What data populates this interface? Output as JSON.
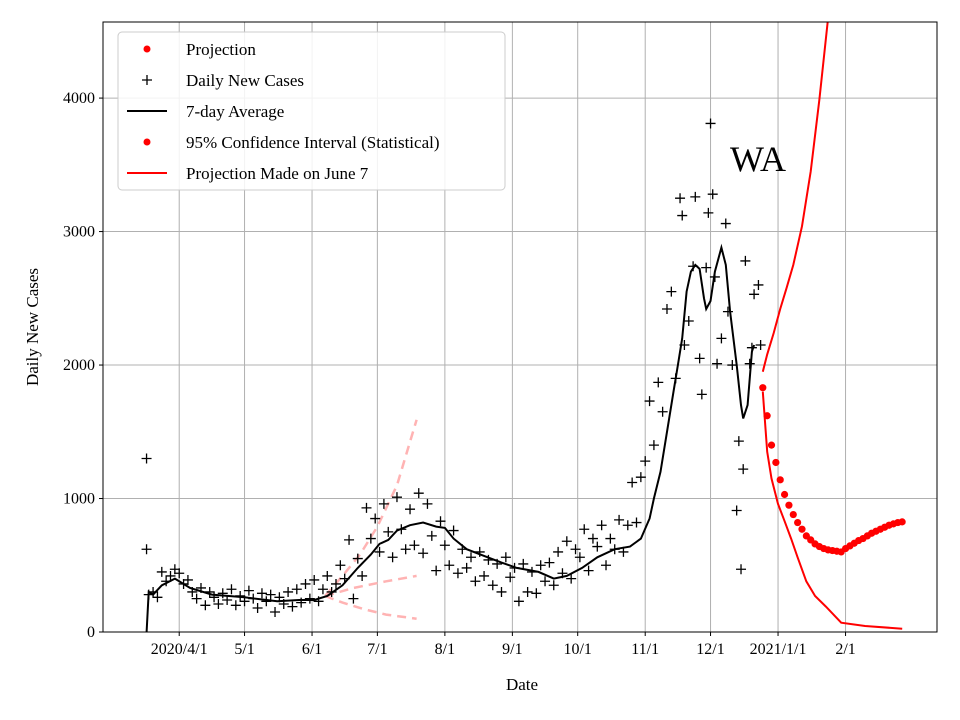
{
  "chart_data": {
    "type": "line",
    "title": "WA",
    "xlabel": "Date",
    "ylabel": "Daily New Cases",
    "x_unit": "days since 2020/4/1",
    "xlim": [
      -35,
      348
    ],
    "ylim": [
      0,
      4570
    ],
    "grid": true,
    "legend_placement": "top-left",
    "x_ticks": [
      {
        "label": "2020/4/1",
        "value": 0
      },
      {
        "label": "5/1",
        "value": 30
      },
      {
        "label": "6/1",
        "value": 61
      },
      {
        "label": "7/1",
        "value": 91
      },
      {
        "label": "8/1",
        "value": 122
      },
      {
        "label": "9/1",
        "value": 153
      },
      {
        "label": "10/1",
        "value": 183
      },
      {
        "label": "11/1",
        "value": 214
      },
      {
        "label": "12/1",
        "value": 244
      },
      {
        "label": "2021/1/1",
        "value": 275
      },
      {
        "label": "2/1",
        "value": 306
      }
    ],
    "y_ticks": [
      {
        "label": "0",
        "value": 0
      },
      {
        "label": "1000",
        "value": 1000
      },
      {
        "label": "2000",
        "value": 2000
      },
      {
        "label": "3000",
        "value": 3000
      },
      {
        "label": "4000",
        "value": 4000
      }
    ],
    "legend": [
      {
        "label": "Projection",
        "marker": "dot",
        "color": "#ff0000"
      },
      {
        "label": "Daily New Cases",
        "marker": "plus",
        "color": "#000000"
      },
      {
        "label": "7-day Average",
        "marker": "line",
        "color": "#000000"
      },
      {
        "label": "95% Confidence Interval (Statistical)",
        "marker": "dot",
        "color": "#ff0000"
      },
      {
        "label": "Projection Made on June 7",
        "marker": "line",
        "color": "#ff0000"
      }
    ],
    "series": {
      "daily_new_cases": [
        [
          -15,
          1300
        ],
        [
          -15,
          620
        ],
        [
          -14,
          280
        ],
        [
          -12,
          300
        ],
        [
          -10,
          260
        ],
        [
          -8,
          450
        ],
        [
          -6,
          380
        ],
        [
          -4,
          420
        ],
        [
          -2,
          470
        ],
        [
          0,
          440
        ],
        [
          2,
          360
        ],
        [
          4,
          390
        ],
        [
          6,
          300
        ],
        [
          8,
          250
        ],
        [
          10,
          330
        ],
        [
          12,
          200
        ],
        [
          14,
          300
        ],
        [
          16,
          260
        ],
        [
          18,
          210
        ],
        [
          20,
          290
        ],
        [
          22,
          240
        ],
        [
          24,
          320
        ],
        [
          26,
          200
        ],
        [
          28,
          270
        ],
        [
          30,
          230
        ],
        [
          32,
          310
        ],
        [
          34,
          250
        ],
        [
          36,
          180
        ],
        [
          38,
          290
        ],
        [
          40,
          230
        ],
        [
          42,
          280
        ],
        [
          44,
          150
        ],
        [
          46,
          260
        ],
        [
          48,
          210
        ],
        [
          50,
          300
        ],
        [
          52,
          190
        ],
        [
          54,
          320
        ],
        [
          56,
          220
        ],
        [
          58,
          360
        ],
        [
          60,
          250
        ],
        [
          62,
          390
        ],
        [
          64,
          230
        ],
        [
          66,
          320
        ],
        [
          68,
          420
        ],
        [
          70,
          300
        ],
        [
          72,
          360
        ],
        [
          74,
          500
        ],
        [
          76,
          400
        ],
        [
          78,
          690
        ],
        [
          80,
          250
        ],
        [
          82,
          550
        ],
        [
          84,
          420
        ],
        [
          86,
          930
        ],
        [
          88,
          700
        ],
        [
          90,
          850
        ],
        [
          92,
          600
        ],
        [
          94,
          960
        ],
        [
          96,
          750
        ],
        [
          98,
          560
        ],
        [
          100,
          1010
        ],
        [
          102,
          770
        ],
        [
          104,
          620
        ],
        [
          106,
          920
        ],
        [
          108,
          650
        ],
        [
          110,
          1040
        ],
        [
          112,
          590
        ],
        [
          114,
          960
        ],
        [
          116,
          720
        ],
        [
          118,
          460
        ],
        [
          120,
          830
        ],
        [
          122,
          650
        ],
        [
          124,
          500
        ],
        [
          126,
          760
        ],
        [
          128,
          440
        ],
        [
          130,
          620
        ],
        [
          132,
          480
        ],
        [
          134,
          560
        ],
        [
          136,
          380
        ],
        [
          138,
          600
        ],
        [
          140,
          420
        ],
        [
          142,
          540
        ],
        [
          144,
          350
        ],
        [
          146,
          510
        ],
        [
          148,
          300
        ],
        [
          150,
          560
        ],
        [
          152,
          410
        ],
        [
          154,
          480
        ],
        [
          156,
          230
        ],
        [
          158,
          510
        ],
        [
          160,
          300
        ],
        [
          162,
          450
        ],
        [
          164,
          290
        ],
        [
          166,
          500
        ],
        [
          168,
          380
        ],
        [
          170,
          520
        ],
        [
          172,
          350
        ],
        [
          174,
          600
        ],
        [
          176,
          440
        ],
        [
          178,
          680
        ],
        [
          180,
          400
        ],
        [
          182,
          620
        ],
        [
          184,
          560
        ],
        [
          186,
          770
        ],
        [
          188,
          460
        ],
        [
          190,
          700
        ],
        [
          192,
          640
        ],
        [
          194,
          800
        ],
        [
          196,
          500
        ],
        [
          198,
          700
        ],
        [
          200,
          620
        ],
        [
          202,
          840
        ],
        [
          204,
          600
        ],
        [
          206,
          800
        ],
        [
          208,
          1120
        ],
        [
          210,
          820
        ],
        [
          212,
          1160
        ],
        [
          214,
          1280
        ],
        [
          216,
          1730
        ],
        [
          218,
          1400
        ],
        [
          220,
          1870
        ],
        [
          222,
          1650
        ],
        [
          224,
          2420
        ],
        [
          226,
          2550
        ],
        [
          228,
          1900
        ],
        [
          230,
          3250
        ],
        [
          231,
          3120
        ],
        [
          232,
          2150
        ],
        [
          234,
          2330
        ],
        [
          236,
          2740
        ],
        [
          237,
          3260
        ],
        [
          239,
          2050
        ],
        [
          240,
          1780
        ],
        [
          242,
          2730
        ],
        [
          243,
          3140
        ],
        [
          244,
          3810
        ],
        [
          245,
          3280
        ],
        [
          246,
          2660
        ],
        [
          247,
          2010
        ],
        [
          249,
          2200
        ],
        [
          251,
          3060
        ],
        [
          252,
          2400
        ],
        [
          254,
          2000
        ],
        [
          256,
          910
        ],
        [
          257,
          1430
        ],
        [
          258,
          470
        ],
        [
          259,
          1220
        ],
        [
          260,
          2780
        ],
        [
          262,
          2010
        ],
        [
          263,
          2130
        ],
        [
          264,
          2530
        ],
        [
          266,
          2600
        ],
        [
          267,
          2150
        ]
      ],
      "seven_day_average": [
        [
          -15,
          0
        ],
        [
          -14,
          300
        ],
        [
          -12,
          280
        ],
        [
          -8,
          350
        ],
        [
          -2,
          400
        ],
        [
          5,
          330
        ],
        [
          15,
          280
        ],
        [
          30,
          260
        ],
        [
          45,
          230
        ],
        [
          55,
          240
        ],
        [
          62,
          240
        ],
        [
          68,
          270
        ],
        [
          75,
          350
        ],
        [
          82,
          480
        ],
        [
          88,
          580
        ],
        [
          92,
          660
        ],
        [
          96,
          690
        ],
        [
          100,
          760
        ],
        [
          106,
          800
        ],
        [
          112,
          820
        ],
        [
          118,
          790
        ],
        [
          122,
          780
        ],
        [
          126,
          700
        ],
        [
          132,
          620
        ],
        [
          140,
          570
        ],
        [
          148,
          520
        ],
        [
          155,
          480
        ],
        [
          165,
          450
        ],
        [
          172,
          400
        ],
        [
          178,
          420
        ],
        [
          185,
          480
        ],
        [
          192,
          560
        ],
        [
          200,
          620
        ],
        [
          207,
          640
        ],
        [
          212,
          700
        ],
        [
          216,
          850
        ],
        [
          218,
          1000
        ],
        [
          221,
          1200
        ],
        [
          224,
          1500
        ],
        [
          227,
          1800
        ],
        [
          229,
          2000
        ],
        [
          231,
          2200
        ],
        [
          233,
          2550
        ],
        [
          235,
          2700
        ],
        [
          237,
          2750
        ],
        [
          239,
          2720
        ],
        [
          241,
          2500
        ],
        [
          242,
          2420
        ],
        [
          244,
          2480
        ],
        [
          246,
          2700
        ],
        [
          249,
          2880
        ],
        [
          251,
          2750
        ],
        [
          253,
          2400
        ],
        [
          256,
          2000
        ],
        [
          258,
          1700
        ],
        [
          259,
          1600
        ],
        [
          261,
          1700
        ],
        [
          263,
          2100
        ],
        [
          264,
          2150
        ]
      ],
      "projection": [
        [
          268,
          1830
        ],
        [
          270,
          1620
        ],
        [
          272,
          1400
        ],
        [
          274,
          1270
        ],
        [
          276,
          1140
        ],
        [
          278,
          1030
        ],
        [
          280,
          950
        ],
        [
          282,
          880
        ],
        [
          284,
          820
        ],
        [
          286,
          770
        ],
        [
          288,
          720
        ],
        [
          290,
          690
        ],
        [
          292,
          660
        ],
        [
          294,
          640
        ],
        [
          296,
          625
        ],
        [
          298,
          615
        ],
        [
          300,
          610
        ],
        [
          302,
          605
        ],
        [
          304,
          600
        ],
        [
          306,
          625
        ],
        [
          308,
          645
        ],
        [
          310,
          665
        ],
        [
          312,
          685
        ],
        [
          314,
          700
        ],
        [
          316,
          720
        ],
        [
          318,
          740
        ],
        [
          320,
          755
        ],
        [
          322,
          770
        ],
        [
          324,
          785
        ],
        [
          326,
          800
        ],
        [
          328,
          810
        ],
        [
          330,
          820
        ],
        [
          332,
          825
        ]
      ],
      "ci_upper": [
        [
          268,
          1950
        ],
        [
          270,
          2080
        ],
        [
          273,
          2240
        ],
        [
          276,
          2420
        ],
        [
          279,
          2580
        ],
        [
          282,
          2750
        ],
        [
          286,
          3040
        ],
        [
          290,
          3450
        ],
        [
          294,
          3990
        ],
        [
          298,
          4600
        ]
      ],
      "ci_lower": [
        [
          268,
          1800
        ],
        [
          270,
          1350
        ],
        [
          272,
          1150
        ],
        [
          275,
          960
        ],
        [
          278,
          830
        ],
        [
          281,
          700
        ],
        [
          284,
          560
        ],
        [
          288,
          380
        ],
        [
          292,
          270
        ],
        [
          297,
          190
        ],
        [
          304,
          70
        ],
        [
          315,
          45
        ],
        [
          332,
          25
        ]
      ],
      "june7_projection_upper": [
        [
          67,
          270
        ],
        [
          75,
          420
        ],
        [
          83,
          580
        ],
        [
          91,
          790
        ],
        [
          100,
          1100
        ],
        [
          109,
          1590
        ]
      ],
      "june7_projection_mid": [
        [
          67,
          270
        ],
        [
          80,
          330
        ],
        [
          95,
          380
        ],
        [
          109,
          420
        ]
      ],
      "june7_projection_lower": [
        [
          67,
          270
        ],
        [
          75,
          220
        ],
        [
          85,
          170
        ],
        [
          95,
          130
        ],
        [
          109,
          100
        ]
      ]
    },
    "colors": {
      "projection": "#ff0000",
      "cases": "#000000",
      "june7": "#ffb3b3",
      "grid": "#b0b0b0"
    }
  }
}
